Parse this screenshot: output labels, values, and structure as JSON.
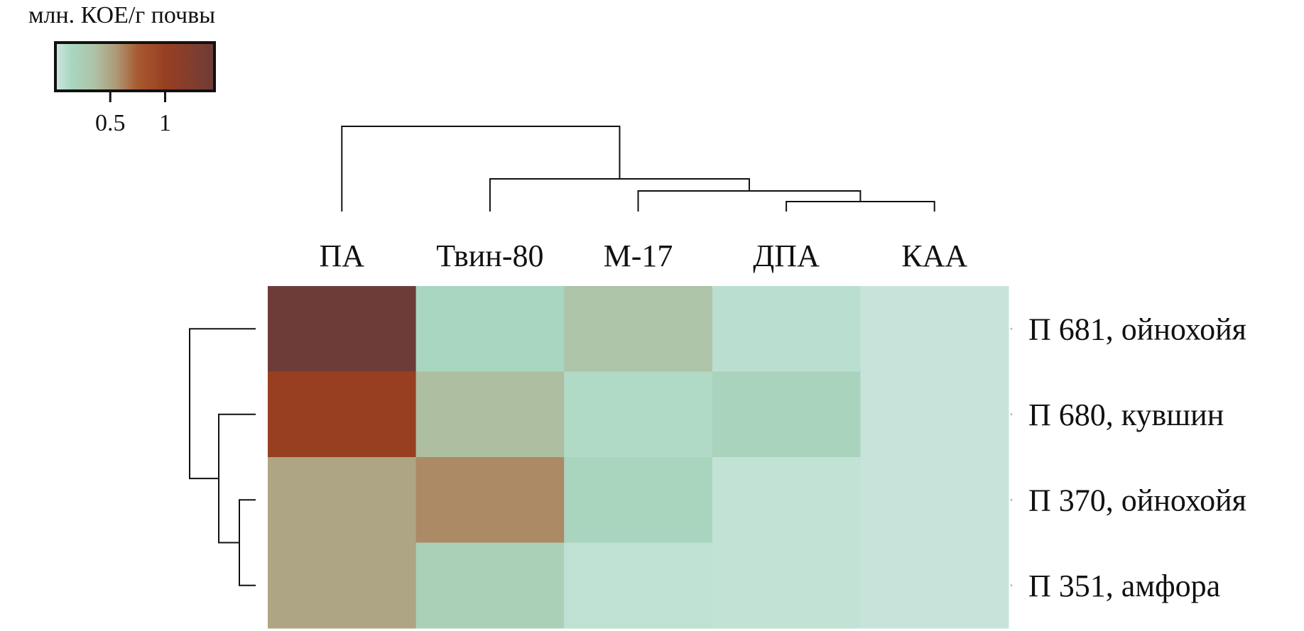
{
  "chart_data": {
    "type": "heatmap",
    "title": "",
    "legend": {
      "title": "млн. КОЕ/г почвы",
      "ticks": [
        0.5,
        1
      ],
      "tick_labels": [
        "0.5",
        "1"
      ],
      "range": [
        0,
        1.45
      ],
      "placement": "top-left",
      "color_stops": [
        {
          "value": 0.0,
          "color": "#cfe8e0"
        },
        {
          "value": 0.15,
          "color": "#a8d6c0"
        },
        {
          "value": 0.35,
          "color": "#aec4a8"
        },
        {
          "value": 0.55,
          "color": "#ad9a78"
        },
        {
          "value": 0.75,
          "color": "#a85a30"
        },
        {
          "value": 1.0,
          "color": "#983f22"
        },
        {
          "value": 1.45,
          "color": "#6e3c38"
        }
      ]
    },
    "columns": [
      "ПА",
      "Твин-80",
      "М-17",
      "ДПА",
      "КАА"
    ],
    "rows": [
      "П 681, ойнохойя",
      "П 680, кувшин",
      "П 370, ойнохойя",
      "П 351, амфора"
    ],
    "values": [
      [
        1.45,
        0.15,
        0.35,
        0.08,
        0.03
      ],
      [
        1.0,
        0.38,
        0.12,
        0.18,
        0.03
      ],
      [
        0.5,
        0.6,
        0.17,
        0.05,
        0.03
      ],
      [
        0.5,
        0.22,
        0.06,
        0.05,
        0.03
      ]
    ],
    "column_dendrogram": "(ПА,(Твин-80,(М-17,(ДПА,КАА))))",
    "row_dendrogram": "(П 681, ойнохойя,(П 680, кувшин,(П 370, ойнохойя,П 351, амфора)))"
  }
}
